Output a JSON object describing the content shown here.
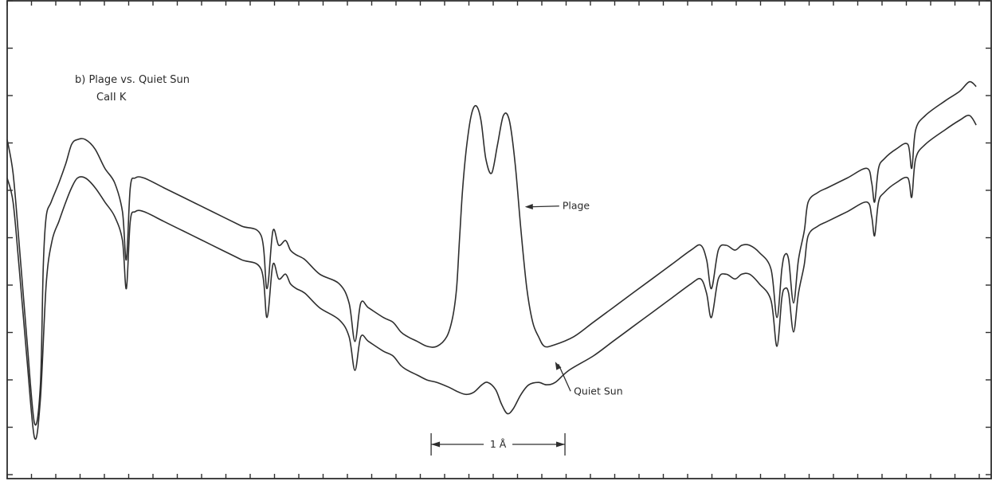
{
  "chart_data": {
    "type": "line",
    "title_line1": "b)   Plage vs. Quiet Sun",
    "title_line2": "CaII K",
    "xlabel": "",
    "ylabel": "",
    "grid": false,
    "xlim": [
      0,
      1000
    ],
    "ylim": [
      0,
      100
    ],
    "scale_bar": {
      "label": "1 Å",
      "x_start": 434,
      "x_end": 571
    },
    "annotations": [
      {
        "text": "Plage",
        "points_to": [
          530,
          57
        ],
        "text_at": [
          570,
          56.5
        ]
      },
      {
        "text": "Quiet Sun",
        "points_to": [
          561,
          24.8
        ],
        "text_at": [
          580,
          18
        ]
      }
    ],
    "series": [
      {
        "name": "Plage",
        "x": [
          0,
          6,
          12,
          20,
          28,
          34,
          37,
          40,
          45,
          53,
          60,
          66,
          72,
          80,
          90,
          100,
          110,
          118,
          122,
          126,
          131,
          140,
          160,
          180,
          200,
          220,
          240,
          260,
          266,
          272,
          278,
          285,
          290,
          296,
          305,
          320,
          340,
          350,
          356,
          362,
          370,
          385,
          395,
          403,
          410,
          420,
          430,
          440,
          450,
          456,
          460,
          463,
          466,
          470,
          475,
          480,
          485,
          490,
          496,
          502,
          508,
          514,
          520,
          526,
          532,
          538,
          544,
          550,
          560,
          580,
          600,
          620,
          640,
          660,
          680,
          700,
          710,
          716,
          721,
          728,
          736,
          745,
          752,
          760,
          770,
          782,
          788,
          793,
          796,
          800,
          805,
          810,
          816,
          820,
          830,
          840,
          860,
          880,
          885,
          888,
          892,
          898,
          910,
          922,
          926,
          930,
          940,
          960,
          975,
          985,
          992
        ],
        "y": [
          71,
          64,
          50,
          30,
          12,
          20,
          45,
          55,
          58,
          62,
          66,
          70,
          71,
          71,
          69,
          65,
          62,
          56,
          46,
          61,
          63,
          63,
          61,
          59,
          57,
          55,
          53,
          51,
          40,
          52,
          49,
          50,
          48,
          47,
          46,
          43,
          41,
          37,
          29,
          37,
          36,
          34,
          33,
          31,
          30,
          29,
          28,
          28,
          30,
          34,
          40,
          50,
          60,
          69,
          76,
          78,
          75,
          67,
          64,
          70,
          76,
          75,
          66,
          52,
          40,
          33,
          30,
          28,
          28.3,
          30,
          33,
          36,
          39,
          42,
          45,
          48,
          49,
          46,
          40,
          48,
          49,
          48,
          49,
          49,
          47.5,
          44,
          34,
          44,
          47,
          46,
          37,
          46,
          52,
          58,
          60,
          61,
          63,
          65,
          62,
          58,
          65,
          67,
          69,
          70,
          65,
          73,
          76,
          79,
          81,
          83,
          82
        ]
      },
      {
        "name": "Quiet Sun",
        "x": [
          0,
          6,
          12,
          20,
          28,
          34,
          40,
          46,
          53,
          60,
          66,
          72,
          80,
          90,
          100,
          110,
          118,
          122,
          126,
          131,
          140,
          160,
          180,
          200,
          220,
          240,
          260,
          266,
          272,
          278,
          285,
          290,
          296,
          305,
          320,
          340,
          350,
          356,
          362,
          370,
          385,
          395,
          403,
          410,
          420,
          430,
          440,
          452,
          462,
          470,
          478,
          486,
          492,
          500,
          506,
          512,
          518,
          526,
          534,
          544,
          552,
          561,
          575,
          600,
          620,
          640,
          660,
          680,
          700,
          710,
          716,
          721,
          728,
          736,
          745,
          752,
          760,
          770,
          782,
          788,
          793,
          796,
          800,
          805,
          810,
          816,
          820,
          830,
          840,
          860,
          880,
          885,
          888,
          892,
          898,
          910,
          922,
          926,
          930,
          940,
          960,
          975,
          985,
          992
        ],
        "y": [
          63,
          58,
          45,
          26,
          9,
          17,
          41,
          50,
          54,
          58,
          61,
          63,
          63,
          61,
          58,
          55,
          50,
          40,
          54,
          56,
          56,
          54,
          52,
          50,
          48,
          46,
          44,
          34,
          45,
          42,
          43,
          41,
          40,
          39,
          36,
          33.5,
          30,
          23,
          30,
          29,
          27,
          26,
          24,
          23,
          22,
          21,
          20.5,
          19.5,
          18.5,
          18,
          18.5,
          20,
          20.5,
          19,
          16,
          14,
          15,
          18,
          20,
          20.5,
          20,
          20.5,
          23,
          26,
          29,
          32,
          35,
          38,
          41,
          42,
          39,
          34,
          42,
          43,
          42,
          43,
          43,
          41,
          37.5,
          28,
          38,
          40,
          39,
          31,
          39,
          45,
          51,
          53,
          54,
          56,
          58,
          55,
          51,
          58,
          60,
          62,
          63,
          59,
          67,
          70,
          73,
          75,
          76,
          74
        ]
      }
    ]
  }
}
